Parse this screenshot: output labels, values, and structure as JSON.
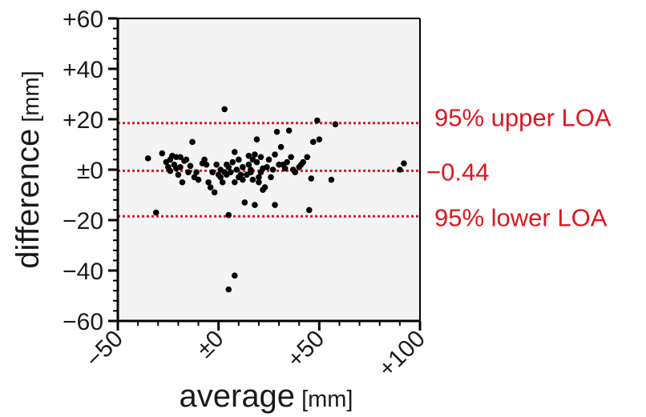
{
  "chart_data": {
    "type": "scatter",
    "title": "",
    "xlabel": "average",
    "xlabel_unit": "[mm]",
    "ylabel": "difference",
    "ylabel_unit": "[mm]",
    "xlim": [
      -50,
      100
    ],
    "ylim": [
      -60,
      60
    ],
    "x_ticks": [
      -50,
      0,
      50,
      100
    ],
    "x_tick_labels": [
      "−50",
      "±0",
      "+50",
      "+100"
    ],
    "y_ticks": [
      -60,
      -40,
      -20,
      0,
      20,
      40,
      60
    ],
    "y_tick_labels": [
      "−60",
      "−40",
      "−20",
      "±0",
      "+20",
      "+40",
      "+60"
    ],
    "grid": false,
    "plot_background": "#f4f4f4",
    "point_color": "#000000",
    "lines": [
      {
        "name": "upper_loa",
        "y": 18.5,
        "label": "95% upper LOA",
        "color": "#e0161e"
      },
      {
        "name": "mean",
        "y": -0.44,
        "label": "−0.44",
        "color": "#e0161e"
      },
      {
        "name": "lower_loa",
        "y": -18.5,
        "label": "95% lower LOA",
        "color": "#e0161e"
      }
    ],
    "points": [
      [
        -35,
        4.5
      ],
      [
        -31,
        -17
      ],
      [
        -28,
        6.5
      ],
      [
        -26,
        3
      ],
      [
        -25,
        1
      ],
      [
        -24,
        4
      ],
      [
        -24,
        -0.5
      ],
      [
        -23,
        5.5
      ],
      [
        -22,
        2
      ],
      [
        -21,
        0.5
      ],
      [
        -21,
        5
      ],
      [
        -20,
        -2
      ],
      [
        -19,
        1
      ],
      [
        -19,
        5
      ],
      [
        -18,
        -5
      ],
      [
        -17,
        3.5
      ],
      [
        -16,
        4
      ],
      [
        -15,
        -1
      ],
      [
        -14,
        1.5
      ],
      [
        -13,
        11
      ],
      [
        -12,
        -3
      ],
      [
        -11,
        -1
      ],
      [
        -10,
        -4
      ],
      [
        -8,
        2.5
      ],
      [
        -7,
        4
      ],
      [
        -6,
        2
      ],
      [
        -5,
        -5
      ],
      [
        -4,
        -7
      ],
      [
        -3,
        -1
      ],
      [
        -2,
        -9
      ],
      [
        -1,
        2
      ],
      [
        0,
        -2
      ],
      [
        1,
        -3
      ],
      [
        1,
        0
      ],
      [
        2,
        -5
      ],
      [
        3,
        -1
      ],
      [
        3,
        24
      ],
      [
        4,
        -2
      ],
      [
        4,
        2
      ],
      [
        5,
        1
      ],
      [
        5,
        -18
      ],
      [
        5,
        -47.5
      ],
      [
        6,
        -1
      ],
      [
        7,
        3
      ],
      [
        8,
        7
      ],
      [
        8,
        -5
      ],
      [
        8,
        -42
      ],
      [
        9,
        0
      ],
      [
        10,
        4
      ],
      [
        10,
        -3
      ],
      [
        11,
        -2
      ],
      [
        12,
        1
      ],
      [
        12,
        -4
      ],
      [
        13,
        -13
      ],
      [
        14,
        -2
      ],
      [
        15,
        2
      ],
      [
        15,
        5.5
      ],
      [
        16,
        0
      ],
      [
        16,
        -1
      ],
      [
        17,
        4
      ],
      [
        17,
        -4
      ],
      [
        18,
        6
      ],
      [
        18,
        -14
      ],
      [
        19,
        12
      ],
      [
        19,
        3
      ],
      [
        20,
        -3
      ],
      [
        20,
        -5
      ],
      [
        21,
        -1
      ],
      [
        21,
        5
      ],
      [
        22,
        0.5
      ],
      [
        22,
        -8
      ],
      [
        23,
        -7
      ],
      [
        24,
        1
      ],
      [
        25,
        4
      ],
      [
        26,
        -3
      ],
      [
        27,
        0
      ],
      [
        28,
        -14
      ],
      [
        28,
        6
      ],
      [
        29,
        15
      ],
      [
        30,
        2
      ],
      [
        31,
        9
      ],
      [
        32,
        2
      ],
      [
        33,
        0.5
      ],
      [
        34,
        3
      ],
      [
        35,
        15.5
      ],
      [
        36,
        5
      ],
      [
        37,
        0
      ],
      [
        38,
        -1
      ],
      [
        40,
        1
      ],
      [
        41,
        2
      ],
      [
        42,
        3
      ],
      [
        44,
        5
      ],
      [
        45,
        -16
      ],
      [
        46,
        -3.5
      ],
      [
        47,
        11
      ],
      [
        49,
        19.5
      ],
      [
        50,
        12
      ],
      [
        56,
        -4
      ],
      [
        58,
        18
      ],
      [
        90,
        0
      ],
      [
        92,
        2.5
      ]
    ]
  }
}
